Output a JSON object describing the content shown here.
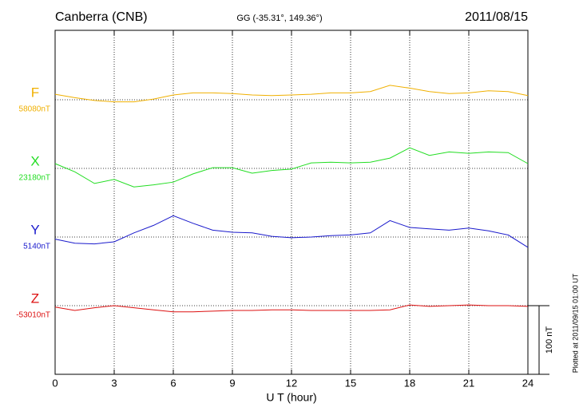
{
  "chart_data": {
    "type": "line",
    "title": "Canberra (CNB)",
    "subtitle": "GG (-35.31°, 149.36°)",
    "date": "2011/08/15",
    "x_label": "U T (hour)",
    "note": "Plotted at 2011/09/15 01:00 UT",
    "scale": {
      "value": 100,
      "label": "100 nT"
    },
    "xlim": [
      0,
      24
    ],
    "xticks": [
      0,
      3,
      6,
      9,
      12,
      15,
      18,
      21,
      24
    ],
    "grid": true,
    "x": [
      0,
      1,
      2,
      3,
      4,
      5,
      6,
      7,
      8,
      9,
      10,
      11,
      12,
      13,
      14,
      15,
      16,
      17,
      18,
      19,
      20,
      21,
      22,
      23,
      24
    ],
    "series": [
      {
        "name": "F",
        "color": "#f0b000",
        "baseline": {
          "value": 58080,
          "label": "58080nT"
        },
        "values": [
          58088,
          58083,
          58079,
          58077,
          58077,
          58081,
          58087,
          58090,
          58090,
          58089,
          58087,
          58086,
          58087,
          58088,
          58090,
          58090,
          58092,
          58101,
          58097,
          58092,
          58089,
          58090,
          58093,
          58092,
          58086
        ]
      },
      {
        "name": "X",
        "color": "#22dd22",
        "baseline": {
          "value": 23180,
          "label": "23180nT"
        },
        "values": [
          23187,
          23175,
          23158,
          23164,
          23153,
          23156,
          23160,
          23172,
          23181,
          23181,
          23173,
          23177,
          23179,
          23188,
          23189,
          23188,
          23189,
          23195,
          23210,
          23199,
          23204,
          23202,
          23204,
          23203,
          23187
        ]
      },
      {
        "name": "Y",
        "color": "#1a1acc",
        "baseline": {
          "value": 5140,
          "label": "5140nT"
        },
        "values": [
          5137,
          5131,
          5130,
          5133,
          5146,
          5157,
          5171,
          5160,
          5150,
          5147,
          5146,
          5141,
          5139,
          5140,
          5142,
          5143,
          5146,
          5164,
          5154,
          5152,
          5150,
          5153,
          5149,
          5143,
          5125
        ]
      },
      {
        "name": "Z",
        "color": "#dd1111",
        "baseline": {
          "value": -53010,
          "label": "-53010nT"
        },
        "values": [
          -53012,
          -53017,
          -53013,
          -53010,
          -53013,
          -53016,
          -53019,
          -53019,
          -53018,
          -53017,
          -53017,
          -53016,
          -53016,
          -53017,
          -53017,
          -53017,
          -53017,
          -53016,
          -53009,
          -53011,
          -53010,
          -53009,
          -53010,
          -53010,
          -53011
        ]
      }
    ]
  }
}
